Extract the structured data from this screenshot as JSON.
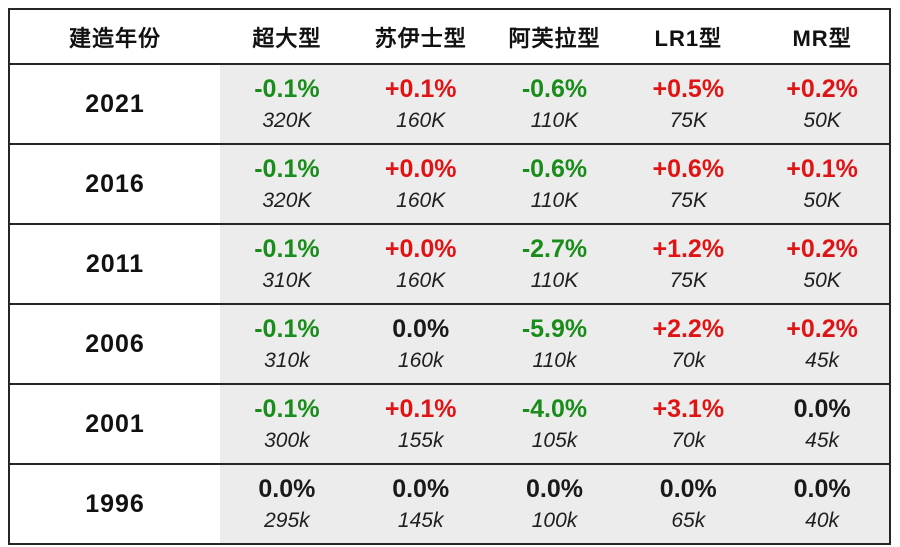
{
  "colors": {
    "negative_green": "#1a8c1a",
    "positive_red": "#e01414",
    "neutral_black": "#1a1a1a",
    "data_cell_bg": "#ececec",
    "border": "#262626"
  },
  "table": {
    "header": [
      "建造年份",
      "超大型",
      "苏伊士型",
      "阿芙拉型",
      "LR1型",
      "MR型"
    ],
    "rows": [
      {
        "year": "2021",
        "cells": [
          {
            "pct": "-0.1%",
            "trend": "down",
            "size": "320K"
          },
          {
            "pct": "+0.1%",
            "trend": "up",
            "size": "160K"
          },
          {
            "pct": "-0.6%",
            "trend": "down",
            "size": "110K"
          },
          {
            "pct": "+0.5%",
            "trend": "up",
            "size": "75K"
          },
          {
            "pct": "+0.2%",
            "trend": "up",
            "size": "50K"
          }
        ]
      },
      {
        "year": "2016",
        "cells": [
          {
            "pct": "-0.1%",
            "trend": "down",
            "size": "320K"
          },
          {
            "pct": "+0.0%",
            "trend": "up",
            "size": "160K"
          },
          {
            "pct": "-0.6%",
            "trend": "down",
            "size": "110K"
          },
          {
            "pct": "+0.6%",
            "trend": "up",
            "size": "75K"
          },
          {
            "pct": "+0.1%",
            "trend": "up",
            "size": "50K"
          }
        ]
      },
      {
        "year": "2011",
        "cells": [
          {
            "pct": "-0.1%",
            "trend": "down",
            "size": "310K"
          },
          {
            "pct": "+0.0%",
            "trend": "up",
            "size": "160K"
          },
          {
            "pct": "-2.7%",
            "trend": "down",
            "size": "110K"
          },
          {
            "pct": "+1.2%",
            "trend": "up",
            "size": "75K"
          },
          {
            "pct": "+0.2%",
            "trend": "up",
            "size": "50K"
          }
        ]
      },
      {
        "year": "2006",
        "cells": [
          {
            "pct": "-0.1%",
            "trend": "down",
            "size": "310k"
          },
          {
            "pct": "0.0%",
            "trend": "flat",
            "size": "160k"
          },
          {
            "pct": "-5.9%",
            "trend": "down",
            "size": "110k"
          },
          {
            "pct": "+2.2%",
            "trend": "up",
            "size": "70k"
          },
          {
            "pct": "+0.2%",
            "trend": "up",
            "size": "45k"
          }
        ]
      },
      {
        "year": "2001",
        "cells": [
          {
            "pct": "-0.1%",
            "trend": "down",
            "size": "300k"
          },
          {
            "pct": "+0.1%",
            "trend": "up",
            "size": "155k"
          },
          {
            "pct": "-4.0%",
            "trend": "down",
            "size": "105k"
          },
          {
            "pct": "+3.1%",
            "trend": "up",
            "size": "70k"
          },
          {
            "pct": "0.0%",
            "trend": "flat",
            "size": "45k"
          }
        ]
      },
      {
        "year": "1996",
        "cells": [
          {
            "pct": "0.0%",
            "trend": "flat",
            "size": "295k"
          },
          {
            "pct": "0.0%",
            "trend": "flat",
            "size": "145k"
          },
          {
            "pct": "0.0%",
            "trend": "flat",
            "size": "100k"
          },
          {
            "pct": "0.0%",
            "trend": "flat",
            "size": "65k"
          },
          {
            "pct": "0.0%",
            "trend": "flat",
            "size": "40k"
          }
        ]
      }
    ]
  }
}
